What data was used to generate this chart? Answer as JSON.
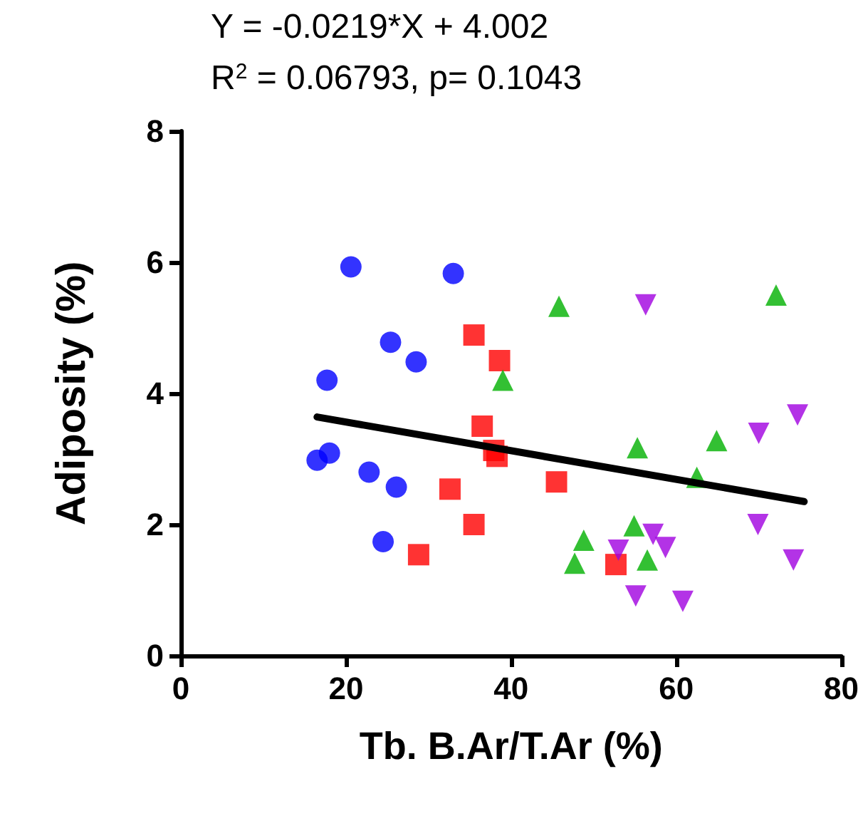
{
  "chart_data": {
    "type": "scatter",
    "title": "Y = -0.0219*X + 4.002",
    "subtitle": "R$^{2}$ = 0.06793, p= 0.1043",
    "xlabel": "Tb. B.Ar/T.Ar (%)",
    "ylabel": "Adiposity (%)",
    "xlim": [
      0,
      80
    ],
    "xticks": [
      0,
      20,
      40,
      60,
      80
    ],
    "ylim": [
      0,
      8
    ],
    "yticks": [
      0,
      2,
      4,
      6,
      8
    ],
    "grid": false,
    "series": [
      {
        "color": "#0000ff",
        "marker": "circle",
        "x": [
          20.6,
          33.0,
          25.4,
          28.5,
          17.7,
          16.5,
          18.0,
          22.8,
          26.1,
          24.5
        ],
        "values": [
          5.93,
          5.83,
          4.78,
          4.48,
          4.2,
          2.98,
          3.09,
          2.8,
          2.57,
          1.74
        ]
      },
      {
        "color": "#ff0000",
        "marker": "square",
        "x": [
          35.5,
          38.6,
          36.5,
          37.9,
          38.3,
          32.6,
          35.5,
          28.8,
          45.5,
          52.7
        ],
        "values": [
          4.89,
          4.5,
          3.5,
          3.13,
          3.04,
          2.54,
          2.0,
          1.54,
          2.65,
          1.39
        ]
      },
      {
        "color": "#00b000",
        "marker": "triangle",
        "x": [
          45.8,
          39.0,
          72.1,
          55.3,
          64.9,
          62.5,
          54.9,
          48.8,
          47.7,
          56.5
        ],
        "values": [
          5.33,
          4.2,
          5.5,
          3.17,
          3.28,
          2.72,
          1.98,
          1.76,
          1.41,
          1.46
        ]
      },
      {
        "color": "#a000e0",
        "marker": "triangle-down",
        "x": [
          56.3,
          74.7,
          70.0,
          69.9,
          74.2,
          57.2,
          58.7,
          53.0,
          55.1,
          60.8
        ],
        "values": [
          5.35,
          3.67,
          3.39,
          2.0,
          1.46,
          1.85,
          1.65,
          1.61,
          0.91,
          0.83
        ]
      },
      {
        "type": "line",
        "color": "#000000",
        "marker": "none",
        "line_style": "solid",
        "x": [
          16.5,
          75.5
        ],
        "values": [
          3.64,
          2.35
        ]
      }
    ]
  }
}
